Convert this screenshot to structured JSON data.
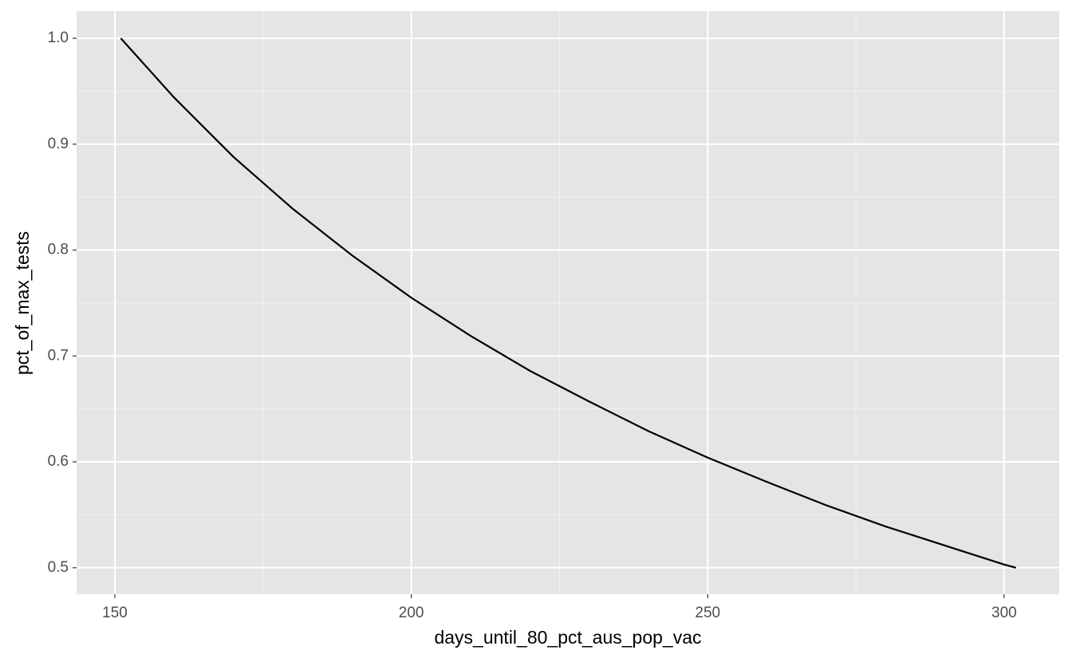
{
  "chart_data": {
    "type": "line",
    "x_label": "days_until_80_pct_aus_pop_vac",
    "y_label": "pct_of_max_tests",
    "x": [
      151,
      160,
      170,
      180,
      190,
      200,
      210,
      220,
      230,
      240,
      250,
      260,
      270,
      280,
      290,
      300,
      302
    ],
    "series": [
      {
        "color": "#000000",
        "values": [
          1.0,
          0.944,
          0.888,
          0.839,
          0.795,
          0.755,
          0.719,
          0.686,
          0.657,
          0.629,
          0.604,
          0.581,
          0.559,
          0.539,
          0.521,
          0.503,
          0.5
        ]
      }
    ],
    "xlim": [
      143.54,
      309.3
    ],
    "ylim": [
      0.475,
      1.0256
    ],
    "xticks": [
      150,
      200,
      250,
      300
    ],
    "yticks": [
      {
        "value": 0.5,
        "label": "0.5"
      },
      {
        "value": 0.6,
        "label": "0.6"
      },
      {
        "value": 0.7,
        "label": "0.7"
      },
      {
        "value": 0.8,
        "label": "0.8"
      },
      {
        "value": 0.9,
        "label": "0.9"
      },
      {
        "value": 1.0,
        "label": "1.0"
      }
    ],
    "grid": true
  }
}
